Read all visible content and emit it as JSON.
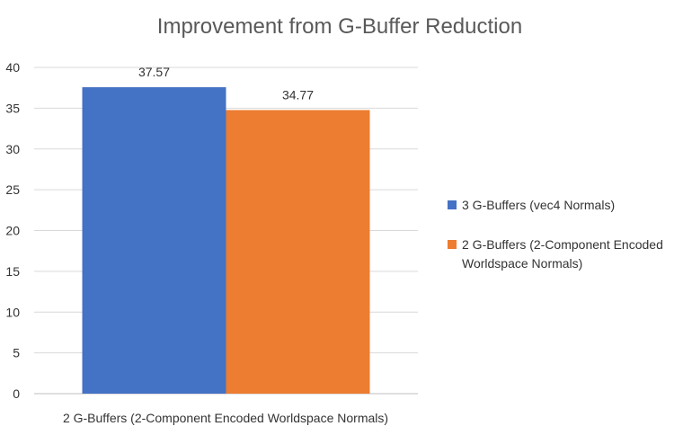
{
  "chart_data": {
    "type": "bar",
    "title": "Improvement from G-Buffer Reduction",
    "categories": [
      "2 G-Buffers (2-Component Encoded Worldspace Normals)"
    ],
    "series": [
      {
        "name": "3 G-Buffers (vec4 Normals)",
        "values": [
          37.57
        ],
        "color": "#4472c4"
      },
      {
        "name": "2 G-Buffers (2-Component Encoded Worldspace Normals)",
        "values": [
          34.77
        ],
        "color": "#ed7d31"
      }
    ],
    "data_labels": [
      "37.57",
      "34.77"
    ],
    "ylim": [
      0,
      40
    ],
    "yticks": [
      0,
      5,
      10,
      15,
      20,
      25,
      30,
      35,
      40
    ],
    "grid": true,
    "legend_position": "right"
  }
}
